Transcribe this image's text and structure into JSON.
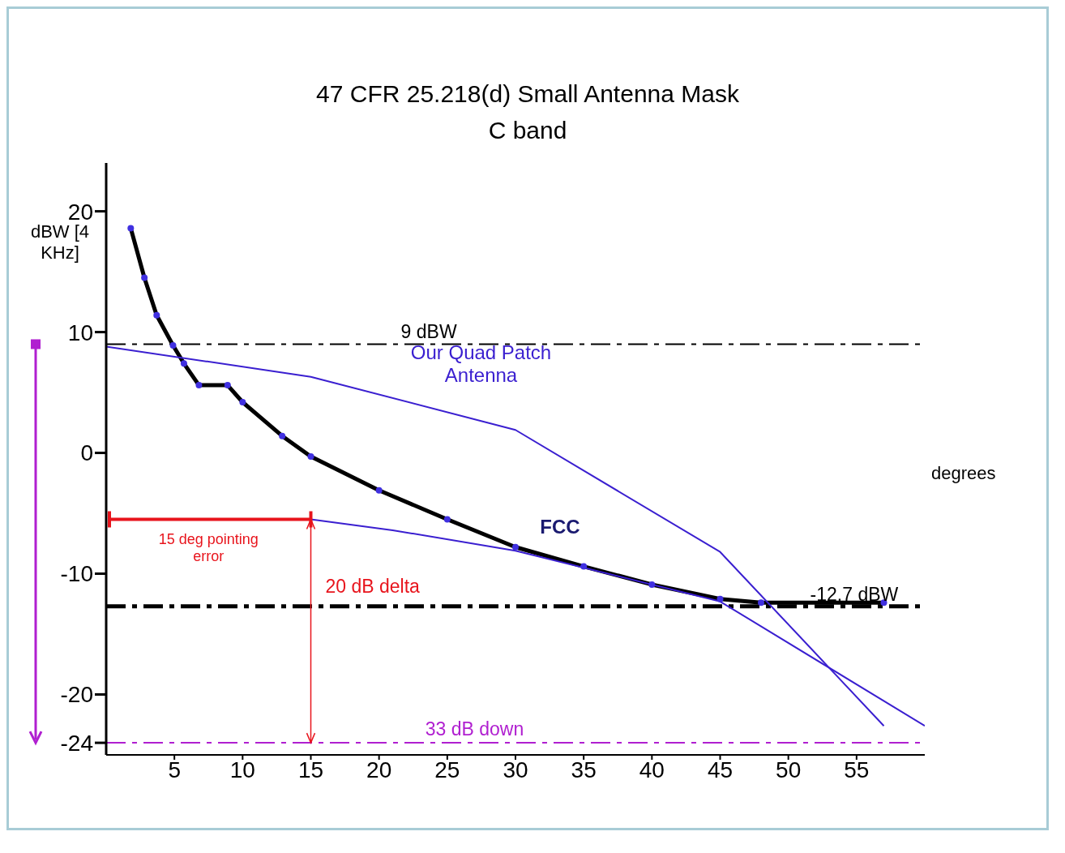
{
  "chart_data": {
    "type": "line",
    "title": "47 CFR 25.218(d)  Small Antenna Mask",
    "subtitle": "C band",
    "xlabel": "degrees",
    "ylabel": "dBW [4 KHz]",
    "xlim": [
      0,
      60
    ],
    "ylim": [
      -25,
      24
    ],
    "xticks": [
      5,
      10,
      15,
      20,
      25,
      30,
      35,
      40,
      45,
      50,
      55
    ],
    "yticks": [
      20,
      10,
      0,
      -10,
      -20,
      -24
    ],
    "series": [
      {
        "name": "FCC",
        "color": "#000000",
        "marker": "circle",
        "line_style": "solid",
        "x": [
          1.8,
          2.8,
          3.7,
          4.9,
          5.7,
          6.8,
          8.9,
          10,
          12.9,
          15,
          20,
          25,
          30,
          35,
          40,
          45,
          48,
          57
        ],
        "values": [
          18.6,
          14.5,
          11.4,
          8.9,
          7.4,
          5.6,
          5.6,
          4.2,
          1.4,
          -0.3,
          -3.1,
          -5.5,
          -7.8,
          -9.4,
          -10.9,
          -12.1,
          -12.4,
          -12.4
        ]
      },
      {
        "name": "Our Quad Patch Antenna",
        "color": "#3a1fd0",
        "marker": "none",
        "line_style": "solid",
        "x": [
          0,
          15,
          30,
          45,
          57
        ],
        "values": [
          8.8,
          6.3,
          1.9,
          -8.2,
          -22.6
        ]
      },
      {
        "color": "#3a1fd0",
        "marker": "none",
        "line_style": "solid",
        "x": [
          15,
          21,
          30,
          45,
          60
        ],
        "values": [
          -5.5,
          -6.4,
          -8.1,
          -12.3,
          -22.6
        ]
      }
    ],
    "ref_lines": [
      {
        "axis": "y",
        "value": 9,
        "label": "9 dBW",
        "color": "#000000",
        "line_style": "dashed"
      },
      {
        "axis": "y",
        "value": -12.7,
        "label": "-12.7 dBW",
        "color": "#000000",
        "line_style": "dashed"
      },
      {
        "axis": "y",
        "value": -24,
        "label": "33 dB down",
        "color": "#b01fd0",
        "line_style": "dashed"
      }
    ],
    "annotations": [
      "15  deg pointing error",
      "20 dB delta"
    ],
    "grid": false,
    "legend": false
  }
}
